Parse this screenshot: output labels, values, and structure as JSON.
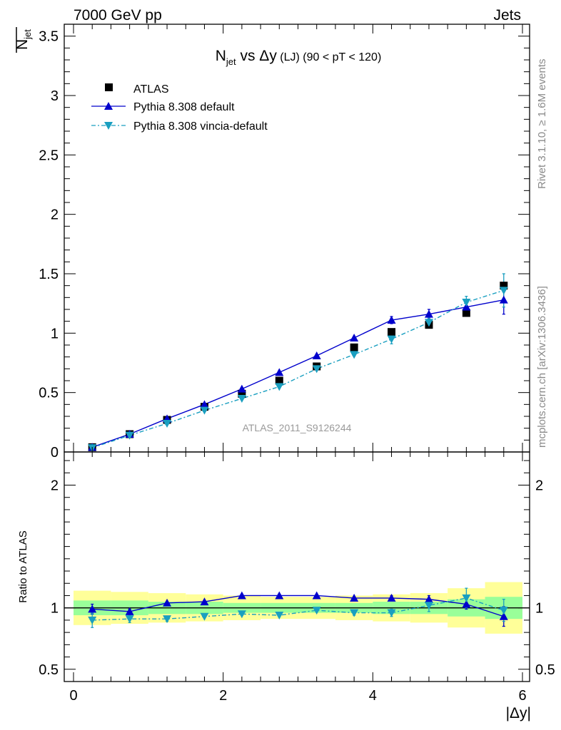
{
  "header": {
    "left": "7000 GeV pp",
    "right": "Jets"
  },
  "side_text": {
    "top": "Rivet 3.1.10, ≥ 1.6M events",
    "bottom": "mcplots.cern.ch [arXiv:1306.3436]"
  },
  "watermark": "ATLAS_2011_S9126244",
  "chart_data": [
    {
      "type": "scatter",
      "title_main": "N",
      "title_sub": "jet",
      "title_rest": " vs Δy",
      "title_small": " (LJ) (90 < pT < 120)",
      "ylabel_main": "N",
      "ylabel_sub": "jet",
      "xlim": [
        0,
        6.1
      ],
      "ylim": [
        0,
        3.6
      ],
      "yticks": [
        0,
        0.5,
        1,
        1.5,
        2,
        2.5,
        3,
        3.5
      ],
      "ytick_labels": [
        "0",
        "0.5",
        "1",
        "1.5",
        "2",
        "2.5",
        "3",
        "3.5"
      ],
      "legend_position": "top-left",
      "x": [
        0.25,
        0.75,
        1.25,
        1.75,
        2.25,
        2.75,
        3.25,
        3.75,
        4.25,
        4.75,
        5.25,
        5.75
      ],
      "series": [
        {
          "name": "ATLAS",
          "style": "square",
          "color": "#000000",
          "values": [
            0.04,
            0.15,
            0.27,
            0.38,
            0.49,
            0.6,
            0.72,
            0.88,
            1.01,
            1.07,
            1.17,
            1.4
          ]
        },
        {
          "name": "Pythia 8.308 default",
          "style": "triangle-up",
          "color": "#0000cc",
          "values": [
            0.04,
            0.15,
            0.28,
            0.4,
            0.53,
            0.67,
            0.81,
            0.96,
            1.11,
            1.16,
            1.22,
            1.28
          ],
          "errors": [
            0,
            0,
            0,
            0,
            0,
            0,
            0,
            0.01,
            0.03,
            0.04,
            0.05,
            0.12
          ]
        },
        {
          "name": "Pythia 8.308 vincia-default",
          "style": "triangle-down",
          "color": "#1a9fc0",
          "values": [
            0.035,
            0.14,
            0.24,
            0.35,
            0.45,
            0.55,
            0.7,
            0.82,
            0.95,
            1.09,
            1.26,
            1.36
          ],
          "errors": [
            0,
            0,
            0,
            0,
            0,
            0,
            0,
            0.01,
            0.04,
            0.04,
            0.05,
            0.14
          ]
        }
      ]
    },
    {
      "type": "scatter",
      "ylabel": "Ratio to ATLAS",
      "xlabel": "|Δy|",
      "xlim": [
        0,
        6.1
      ],
      "ylim": [
        0.4,
        2.27
      ],
      "yticks": [
        0.5,
        1,
        2
      ],
      "ytick_labels": [
        "0.5",
        "1",
        "2"
      ],
      "xticks": [
        0,
        2,
        4,
        6
      ],
      "xtick_labels": [
        "0",
        "2",
        "4",
        "6"
      ],
      "x_edges": [
        0,
        0.5,
        1,
        1.5,
        2,
        2.5,
        3,
        3.5,
        4,
        4.5,
        5,
        5.5,
        6
      ],
      "band_yellow": [
        [
          0.86,
          1.14
        ],
        [
          0.87,
          1.13
        ],
        [
          0.88,
          1.12
        ],
        [
          0.89,
          1.11
        ],
        [
          0.9,
          1.1
        ],
        [
          0.91,
          1.09
        ],
        [
          0.91,
          1.09
        ],
        [
          0.9,
          1.1
        ],
        [
          0.89,
          1.11
        ],
        [
          0.88,
          1.12
        ],
        [
          0.84,
          1.16
        ],
        [
          0.79,
          1.21
        ]
      ],
      "band_green": [
        [
          0.94,
          1.06
        ],
        [
          0.94,
          1.06
        ],
        [
          0.95,
          1.05
        ],
        [
          0.95,
          1.05
        ],
        [
          0.96,
          1.04
        ],
        [
          0.96,
          1.04
        ],
        [
          0.96,
          1.04
        ],
        [
          0.96,
          1.04
        ],
        [
          0.95,
          1.05
        ],
        [
          0.95,
          1.05
        ],
        [
          0.93,
          1.07
        ],
        [
          0.91,
          1.09
        ]
      ],
      "series": [
        {
          "name": "Pythia 8.308 default",
          "style": "triangle-up",
          "color": "#0000cc",
          "values": [
            0.99,
            0.97,
            1.04,
            1.05,
            1.1,
            1.1,
            1.1,
            1.08,
            1.08,
            1.07,
            1.03,
            0.93
          ],
          "errors": [
            0.04,
            0.02,
            0.01,
            0.01,
            0.01,
            0.01,
            0.01,
            0.01,
            0.02,
            0.03,
            0.04,
            0.08
          ]
        },
        {
          "name": "Pythia 8.308 vincia-default",
          "style": "triangle-down",
          "color": "#1a9fc0",
          "values": [
            0.9,
            0.91,
            0.91,
            0.93,
            0.95,
            0.94,
            0.98,
            0.96,
            0.96,
            1.02,
            1.08,
            0.98
          ],
          "errors": [
            0.06,
            0.03,
            0.02,
            0.01,
            0.01,
            0.01,
            0.01,
            0.02,
            0.03,
            0.05,
            0.08,
            0.09
          ]
        }
      ]
    }
  ]
}
